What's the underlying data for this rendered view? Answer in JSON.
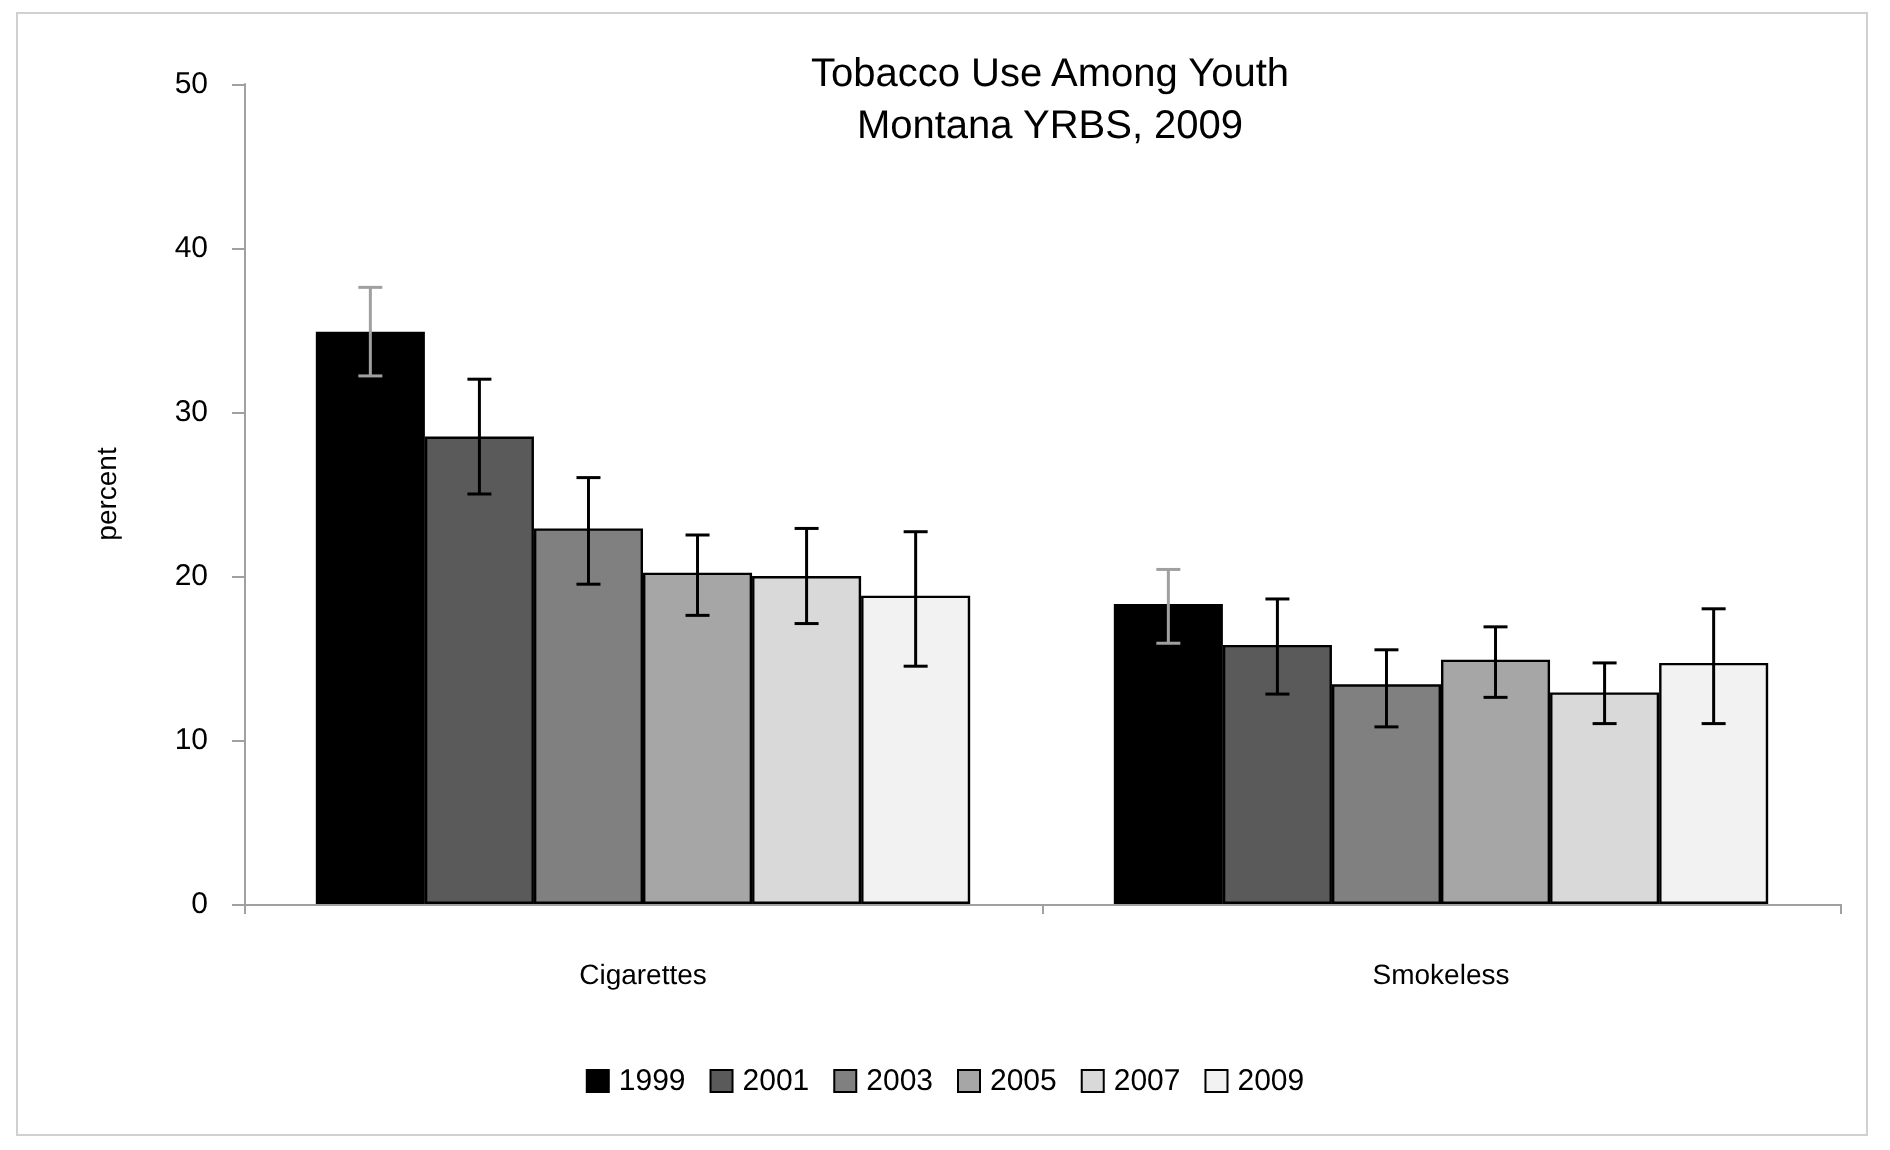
{
  "chart_data": {
    "type": "bar",
    "title": "Tobacco Use Among Youth",
    "subtitle": "Montana YRBS, 2009",
    "ylabel": "percent",
    "categories": [
      "Cigarettes",
      "Smokeless"
    ],
    "series": [
      {
        "name": "1999",
        "color": "#000000",
        "values": [
          34.9,
          18.3
        ],
        "errors": [
          [
            32.2,
            37.6
          ],
          [
            15.9,
            20.4
          ]
        ]
      },
      {
        "name": "2001",
        "color": "#5a5a5a",
        "values": [
          28.5,
          15.8
        ],
        "errors": [
          [
            25.0,
            32.0
          ],
          [
            12.8,
            18.6
          ]
        ]
      },
      {
        "name": "2003",
        "color": "#808080",
        "values": [
          22.9,
          13.4
        ],
        "errors": [
          [
            19.5,
            26.0
          ],
          [
            10.8,
            15.5
          ]
        ]
      },
      {
        "name": "2005",
        "color": "#a6a6a6",
        "values": [
          20.2,
          14.9
        ],
        "errors": [
          [
            17.6,
            22.5
          ],
          [
            12.6,
            16.9
          ]
        ]
      },
      {
        "name": "2007",
        "color": "#d9d9d9",
        "values": [
          20.0,
          12.9
        ],
        "errors": [
          [
            17.1,
            22.9
          ],
          [
            11.0,
            14.7
          ]
        ]
      },
      {
        "name": "2009",
        "color": "#f2f2f2",
        "values": [
          18.8,
          14.7
        ],
        "errors": [
          [
            14.5,
            22.7
          ],
          [
            11.0,
            18.0
          ]
        ]
      }
    ],
    "ylim": [
      0,
      50
    ],
    "yticks": [
      0,
      10,
      20,
      30,
      40,
      50
    ],
    "grid": false,
    "legend": "bottom"
  }
}
